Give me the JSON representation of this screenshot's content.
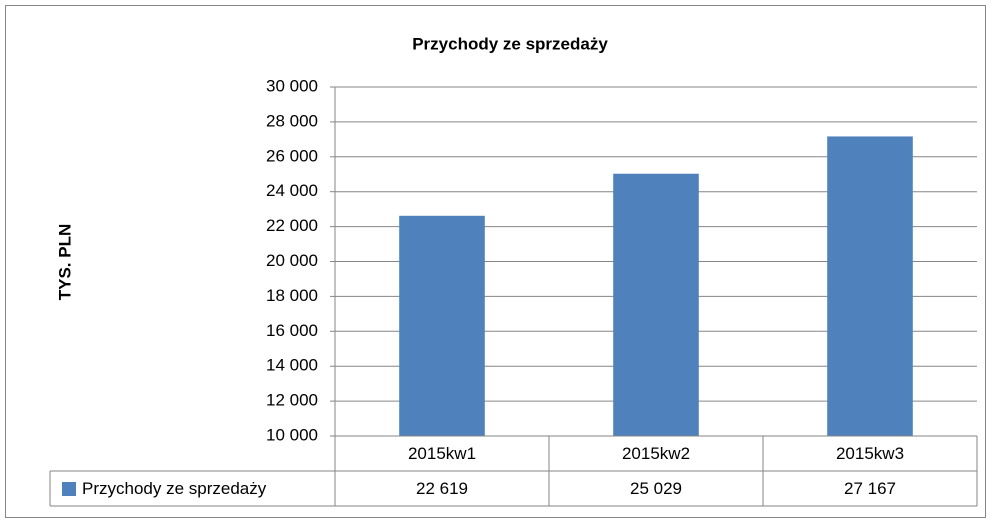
{
  "chart_data": {
    "type": "bar",
    "title": "Przychody ze sprzedaży",
    "y_axis_label": "TYS. PLN",
    "categories": [
      "2015kw1",
      "2015kw2",
      "2015kw3"
    ],
    "series": [
      {
        "name": "Przychody ze sprzedaży",
        "color": "#4f81bd",
        "values": [
          22619,
          25029,
          27167
        ],
        "value_labels": [
          "22 619",
          "25 029",
          "27 167"
        ]
      }
    ],
    "ylim": [
      10000,
      30000
    ],
    "yticks": [
      {
        "value": 10000,
        "label": "10 000"
      },
      {
        "value": 12000,
        "label": "12 000"
      },
      {
        "value": 14000,
        "label": "14 000"
      },
      {
        "value": 16000,
        "label": "16 000"
      },
      {
        "value": 18000,
        "label": "18 000"
      },
      {
        "value": 20000,
        "label": "20 000"
      },
      {
        "value": 22000,
        "label": "22 000"
      },
      {
        "value": 24000,
        "label": "24 000"
      },
      {
        "value": 26000,
        "label": "26 000"
      },
      {
        "value": 28000,
        "label": "28 000"
      },
      {
        "value": 30000,
        "label": "30 000"
      }
    ],
    "grid": true,
    "data_table": true
  }
}
